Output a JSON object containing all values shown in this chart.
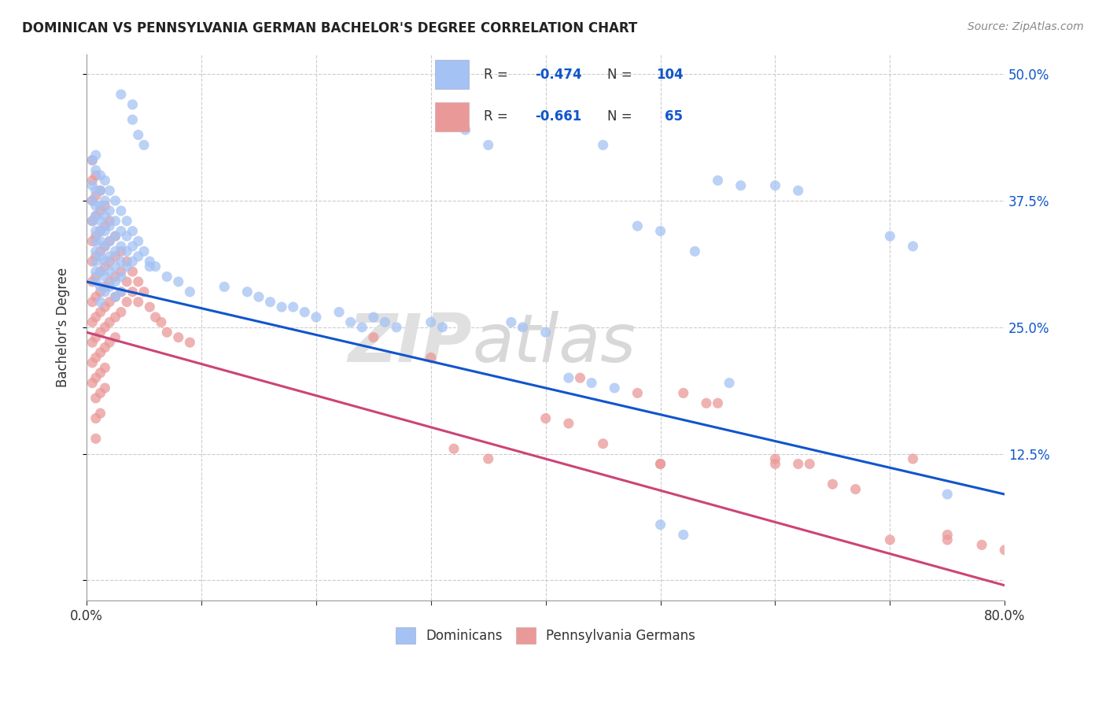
{
  "title": "DOMINICAN VS PENNSYLVANIA GERMAN BACHELOR'S DEGREE CORRELATION CHART",
  "source": "Source: ZipAtlas.com",
  "ylabel": "Bachelor's Degree",
  "watermark_zip": "ZIP",
  "watermark_atlas": "atlas",
  "xlim": [
    0.0,
    0.8
  ],
  "ylim": [
    -0.02,
    0.52
  ],
  "yticks": [
    0.0,
    0.125,
    0.25,
    0.375,
    0.5
  ],
  "ytick_labels": [
    "",
    "12.5%",
    "25.0%",
    "37.5%",
    "50.0%"
  ],
  "xticks": [
    0.0,
    0.1,
    0.2,
    0.3,
    0.4,
    0.5,
    0.6,
    0.7,
    0.8
  ],
  "xtick_labels": [
    "0.0%",
    "",
    "",
    "",
    "",
    "",
    "",
    "",
    "80.0%"
  ],
  "blue_color": "#a4c2f4",
  "pink_color": "#ea9999",
  "blue_line_color": "#1155cc",
  "pink_line_color": "#cc4477",
  "blue_trendline": [
    0.0,
    0.295,
    0.8,
    0.085
  ],
  "pink_trendline": [
    0.0,
    0.245,
    0.8,
    -0.005
  ],
  "dominicans": [
    [
      0.005,
      0.415
    ],
    [
      0.005,
      0.39
    ],
    [
      0.005,
      0.375
    ],
    [
      0.005,
      0.355
    ],
    [
      0.008,
      0.42
    ],
    [
      0.008,
      0.405
    ],
    [
      0.008,
      0.385
    ],
    [
      0.008,
      0.37
    ],
    [
      0.008,
      0.36
    ],
    [
      0.008,
      0.345
    ],
    [
      0.008,
      0.335
    ],
    [
      0.008,
      0.325
    ],
    [
      0.008,
      0.315
    ],
    [
      0.008,
      0.305
    ],
    [
      0.008,
      0.295
    ],
    [
      0.012,
      0.4
    ],
    [
      0.012,
      0.385
    ],
    [
      0.012,
      0.37
    ],
    [
      0.012,
      0.355
    ],
    [
      0.012,
      0.345
    ],
    [
      0.012,
      0.335
    ],
    [
      0.012,
      0.32
    ],
    [
      0.012,
      0.305
    ],
    [
      0.012,
      0.29
    ],
    [
      0.012,
      0.275
    ],
    [
      0.016,
      0.395
    ],
    [
      0.016,
      0.375
    ],
    [
      0.016,
      0.36
    ],
    [
      0.016,
      0.345
    ],
    [
      0.016,
      0.33
    ],
    [
      0.016,
      0.315
    ],
    [
      0.016,
      0.3
    ],
    [
      0.016,
      0.285
    ],
    [
      0.02,
      0.385
    ],
    [
      0.02,
      0.365
    ],
    [
      0.02,
      0.35
    ],
    [
      0.02,
      0.335
    ],
    [
      0.02,
      0.32
    ],
    [
      0.02,
      0.305
    ],
    [
      0.02,
      0.29
    ],
    [
      0.025,
      0.375
    ],
    [
      0.025,
      0.355
    ],
    [
      0.025,
      0.34
    ],
    [
      0.025,
      0.325
    ],
    [
      0.025,
      0.31
    ],
    [
      0.025,
      0.295
    ],
    [
      0.025,
      0.28
    ],
    [
      0.03,
      0.365
    ],
    [
      0.03,
      0.345
    ],
    [
      0.03,
      0.33
    ],
    [
      0.03,
      0.315
    ],
    [
      0.03,
      0.3
    ],
    [
      0.03,
      0.285
    ],
    [
      0.035,
      0.355
    ],
    [
      0.035,
      0.34
    ],
    [
      0.035,
      0.325
    ],
    [
      0.035,
      0.31
    ],
    [
      0.04,
      0.345
    ],
    [
      0.04,
      0.33
    ],
    [
      0.04,
      0.315
    ],
    [
      0.045,
      0.335
    ],
    [
      0.045,
      0.32
    ],
    [
      0.05,
      0.325
    ],
    [
      0.055,
      0.315
    ],
    [
      0.06,
      0.31
    ],
    [
      0.07,
      0.3
    ],
    [
      0.08,
      0.295
    ],
    [
      0.09,
      0.285
    ],
    [
      0.03,
      0.48
    ],
    [
      0.04,
      0.47
    ],
    [
      0.04,
      0.455
    ],
    [
      0.045,
      0.44
    ],
    [
      0.05,
      0.43
    ],
    [
      0.055,
      0.31
    ],
    [
      0.12,
      0.29
    ],
    [
      0.14,
      0.285
    ],
    [
      0.15,
      0.28
    ],
    [
      0.16,
      0.275
    ],
    [
      0.17,
      0.27
    ],
    [
      0.18,
      0.27
    ],
    [
      0.19,
      0.265
    ],
    [
      0.2,
      0.26
    ],
    [
      0.22,
      0.265
    ],
    [
      0.23,
      0.255
    ],
    [
      0.24,
      0.25
    ],
    [
      0.25,
      0.26
    ],
    [
      0.26,
      0.255
    ],
    [
      0.27,
      0.25
    ],
    [
      0.3,
      0.255
    ],
    [
      0.31,
      0.25
    ],
    [
      0.33,
      0.445
    ],
    [
      0.35,
      0.43
    ],
    [
      0.37,
      0.255
    ],
    [
      0.38,
      0.25
    ],
    [
      0.4,
      0.245
    ],
    [
      0.42,
      0.2
    ],
    [
      0.44,
      0.195
    ],
    [
      0.46,
      0.19
    ],
    [
      0.45,
      0.43
    ],
    [
      0.48,
      0.35
    ],
    [
      0.5,
      0.345
    ],
    [
      0.52,
      0.045
    ],
    [
      0.53,
      0.325
    ],
    [
      0.55,
      0.395
    ],
    [
      0.57,
      0.39
    ],
    [
      0.56,
      0.195
    ],
    [
      0.6,
      0.39
    ],
    [
      0.62,
      0.385
    ],
    [
      0.5,
      0.055
    ],
    [
      0.7,
      0.34
    ],
    [
      0.72,
      0.33
    ],
    [
      0.75,
      0.085
    ]
  ],
  "penn_germans": [
    [
      0.005,
      0.415
    ],
    [
      0.005,
      0.395
    ],
    [
      0.005,
      0.375
    ],
    [
      0.005,
      0.355
    ],
    [
      0.005,
      0.335
    ],
    [
      0.005,
      0.315
    ],
    [
      0.005,
      0.295
    ],
    [
      0.005,
      0.275
    ],
    [
      0.005,
      0.255
    ],
    [
      0.005,
      0.235
    ],
    [
      0.005,
      0.215
    ],
    [
      0.005,
      0.195
    ],
    [
      0.008,
      0.4
    ],
    [
      0.008,
      0.38
    ],
    [
      0.008,
      0.36
    ],
    [
      0.008,
      0.34
    ],
    [
      0.008,
      0.32
    ],
    [
      0.008,
      0.3
    ],
    [
      0.008,
      0.28
    ],
    [
      0.008,
      0.26
    ],
    [
      0.008,
      0.24
    ],
    [
      0.008,
      0.22
    ],
    [
      0.008,
      0.2
    ],
    [
      0.008,
      0.18
    ],
    [
      0.008,
      0.16
    ],
    [
      0.008,
      0.14
    ],
    [
      0.012,
      0.385
    ],
    [
      0.012,
      0.365
    ],
    [
      0.012,
      0.345
    ],
    [
      0.012,
      0.325
    ],
    [
      0.012,
      0.305
    ],
    [
      0.012,
      0.285
    ],
    [
      0.012,
      0.265
    ],
    [
      0.012,
      0.245
    ],
    [
      0.012,
      0.225
    ],
    [
      0.012,
      0.205
    ],
    [
      0.012,
      0.185
    ],
    [
      0.012,
      0.165
    ],
    [
      0.016,
      0.37
    ],
    [
      0.016,
      0.35
    ],
    [
      0.016,
      0.33
    ],
    [
      0.016,
      0.31
    ],
    [
      0.016,
      0.29
    ],
    [
      0.016,
      0.27
    ],
    [
      0.016,
      0.25
    ],
    [
      0.016,
      0.23
    ],
    [
      0.016,
      0.21
    ],
    [
      0.016,
      0.19
    ],
    [
      0.02,
      0.355
    ],
    [
      0.02,
      0.335
    ],
    [
      0.02,
      0.315
    ],
    [
      0.02,
      0.295
    ],
    [
      0.02,
      0.275
    ],
    [
      0.02,
      0.255
    ],
    [
      0.02,
      0.235
    ],
    [
      0.025,
      0.34
    ],
    [
      0.025,
      0.32
    ],
    [
      0.025,
      0.3
    ],
    [
      0.025,
      0.28
    ],
    [
      0.025,
      0.26
    ],
    [
      0.025,
      0.24
    ],
    [
      0.03,
      0.325
    ],
    [
      0.03,
      0.305
    ],
    [
      0.03,
      0.285
    ],
    [
      0.03,
      0.265
    ],
    [
      0.035,
      0.315
    ],
    [
      0.035,
      0.295
    ],
    [
      0.035,
      0.275
    ],
    [
      0.04,
      0.305
    ],
    [
      0.04,
      0.285
    ],
    [
      0.045,
      0.295
    ],
    [
      0.045,
      0.275
    ],
    [
      0.05,
      0.285
    ],
    [
      0.055,
      0.27
    ],
    [
      0.06,
      0.26
    ],
    [
      0.065,
      0.255
    ],
    [
      0.07,
      0.245
    ],
    [
      0.08,
      0.24
    ],
    [
      0.09,
      0.235
    ],
    [
      0.25,
      0.24
    ],
    [
      0.3,
      0.22
    ],
    [
      0.32,
      0.13
    ],
    [
      0.35,
      0.12
    ],
    [
      0.4,
      0.16
    ],
    [
      0.42,
      0.155
    ],
    [
      0.43,
      0.2
    ],
    [
      0.45,
      0.135
    ],
    [
      0.48,
      0.185
    ],
    [
      0.5,
      0.115
    ],
    [
      0.52,
      0.185
    ],
    [
      0.54,
      0.175
    ],
    [
      0.55,
      0.175
    ],
    [
      0.6,
      0.12
    ],
    [
      0.62,
      0.115
    ],
    [
      0.63,
      0.115
    ],
    [
      0.65,
      0.095
    ],
    [
      0.67,
      0.09
    ],
    [
      0.7,
      0.04
    ],
    [
      0.72,
      0.12
    ],
    [
      0.75,
      0.045
    ],
    [
      0.78,
      0.035
    ],
    [
      0.8,
      0.03
    ],
    [
      0.5,
      0.115
    ],
    [
      0.6,
      0.115
    ],
    [
      0.75,
      0.04
    ]
  ]
}
